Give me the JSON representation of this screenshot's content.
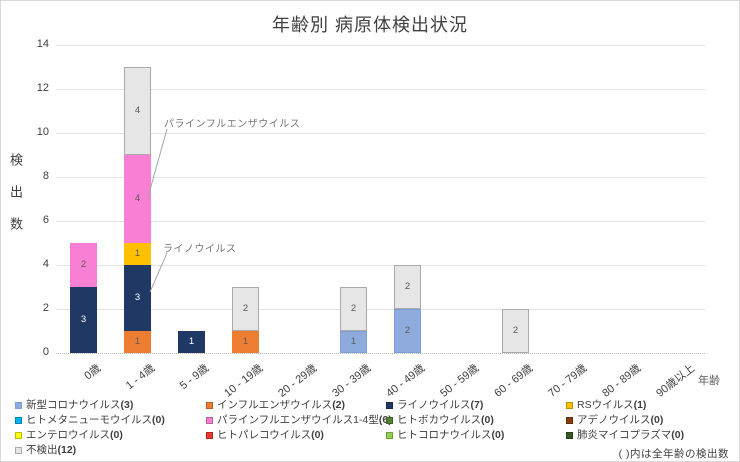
{
  "chart_data": {
    "type": "bar",
    "stacked": true,
    "title": "年齢別 病原体検出状況",
    "xlabel": "年齢",
    "ylabel": "検出数",
    "ylim": [
      0,
      14
    ],
    "ytick_step": 2,
    "grid": true,
    "legend_position": "bottom",
    "categories": [
      "0歳",
      "1 - 4歳",
      "5 - 9歳",
      "10 - 19歳",
      "20 - 29歳",
      "30 - 39歳",
      "40 - 49歳",
      "50 - 59歳",
      "60 - 69歳",
      "70 - 79歳",
      "80 - 89歳",
      "90歳以上"
    ],
    "series": [
      {
        "name": "新型コロナウイルス",
        "total": 3,
        "color": "#8FAADC",
        "border": "#7E9FD6",
        "values": [
          0,
          0,
          0,
          0,
          0,
          1,
          2,
          0,
          0,
          0,
          0,
          0
        ]
      },
      {
        "name": "インフルエンザウイルス",
        "total": 2,
        "color": "#ED7D31",
        "values": [
          0,
          1,
          0,
          1,
          0,
          0,
          0,
          0,
          0,
          0,
          0,
          0
        ]
      },
      {
        "name": "ライノウイルス",
        "total": 7,
        "color": "#1F3864",
        "values": [
          3,
          3,
          1,
          0,
          0,
          0,
          0,
          0,
          0,
          0,
          0,
          0
        ]
      },
      {
        "name": "RSウイルス",
        "total": 1,
        "color": "#FFC000",
        "values": [
          0,
          1,
          0,
          0,
          0,
          0,
          0,
          0,
          0,
          0,
          0,
          0
        ]
      },
      {
        "name": "ヒトメタニューモウイルス",
        "total": 0,
        "color": "#00B0F0",
        "values": [
          0,
          0,
          0,
          0,
          0,
          0,
          0,
          0,
          0,
          0,
          0,
          0
        ]
      },
      {
        "name": "パラインフルエンザウイルス1-4型",
        "total": 6,
        "color": "#F97FD4",
        "values": [
          2,
          4,
          0,
          0,
          0,
          0,
          0,
          0,
          0,
          0,
          0,
          0
        ]
      },
      {
        "name": "ヒトボカウイルス",
        "total": 0,
        "color": "#548235",
        "values": [
          0,
          0,
          0,
          0,
          0,
          0,
          0,
          0,
          0,
          0,
          0,
          0
        ]
      },
      {
        "name": "アデノウイルス",
        "total": 0,
        "color": "#843C0C",
        "values": [
          0,
          0,
          0,
          0,
          0,
          0,
          0,
          0,
          0,
          0,
          0,
          0
        ]
      },
      {
        "name": "エンテロウイルス",
        "total": 0,
        "color": "#FFFF00",
        "values": [
          0,
          0,
          0,
          0,
          0,
          0,
          0,
          0,
          0,
          0,
          0,
          0
        ]
      },
      {
        "name": "ヒトパレコウイルス",
        "total": 0,
        "color": "#E8372D",
        "values": [
          0,
          0,
          0,
          0,
          0,
          0,
          0,
          0,
          0,
          0,
          0,
          0
        ]
      },
      {
        "name": "ヒトコロナウイルス",
        "total": 0,
        "color": "#92D050",
        "values": [
          0,
          0,
          0,
          0,
          0,
          0,
          0,
          0,
          0,
          0,
          0,
          0
        ]
      },
      {
        "name": "肺炎マイコプラズマ",
        "total": 0,
        "color": "#375623",
        "values": [
          0,
          0,
          0,
          0,
          0,
          0,
          0,
          0,
          0,
          0,
          0,
          0
        ]
      },
      {
        "name": "不検出",
        "total": 12,
        "color": "#E7E6E6",
        "border": "#ABA9A9",
        "values": [
          0,
          4,
          0,
          2,
          0,
          2,
          2,
          0,
          2,
          0,
          0,
          0
        ]
      }
    ],
    "annotations": [
      {
        "text": "パラインフルエンザウイルス",
        "target_series": "パラインフルエンザウイルス1-4型",
        "target_category": "1 - 4歳"
      },
      {
        "text": "ライノウイルス",
        "target_series": "ライノウイルス",
        "target_category": "1 - 4歳"
      }
    ],
    "note": "( )内は全年齢の検出数"
  },
  "colors": {
    "background": "#FFFFFF",
    "gridline": "#E4E4E4",
    "baseline": "#B7B7B7",
    "frame_border": "#D9D9D9",
    "axis_text": "#404040",
    "title_text": "#404040",
    "annotation_text": "#757575",
    "leader_line": "#A6A6A6",
    "dark_segment_label": "#FFFFFF",
    "light_segment_label": "#595959"
  }
}
